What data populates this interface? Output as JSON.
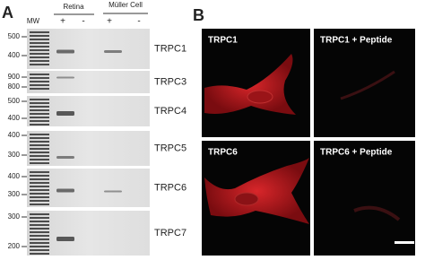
{
  "panel_a": {
    "label": "A",
    "mw_label": "MW",
    "groups": [
      {
        "name": "Retina",
        "lanes": [
          "+",
          "-"
        ]
      },
      {
        "name": "Müller Cell",
        "lanes": [
          "+",
          "-"
        ]
      }
    ],
    "blots": [
      {
        "protein": "TRPC1",
        "markers": [
          500,
          400
        ]
      },
      {
        "protein": "TRPC3",
        "markers": [
          900,
          800
        ]
      },
      {
        "protein": "TRPC4",
        "markers": [
          500,
          400
        ]
      },
      {
        "protein": "TRPC5",
        "markers": [
          400,
          300
        ]
      },
      {
        "protein": "TRPC6",
        "markers": [
          400,
          300
        ]
      },
      {
        "protein": "TRPC7",
        "markers": [
          300,
          200
        ]
      }
    ]
  },
  "panel_b": {
    "label": "B",
    "images": [
      "TRPC1",
      "TRPC1 + Peptide",
      "TRPC6",
      "TRPC6 + Peptide"
    ]
  }
}
